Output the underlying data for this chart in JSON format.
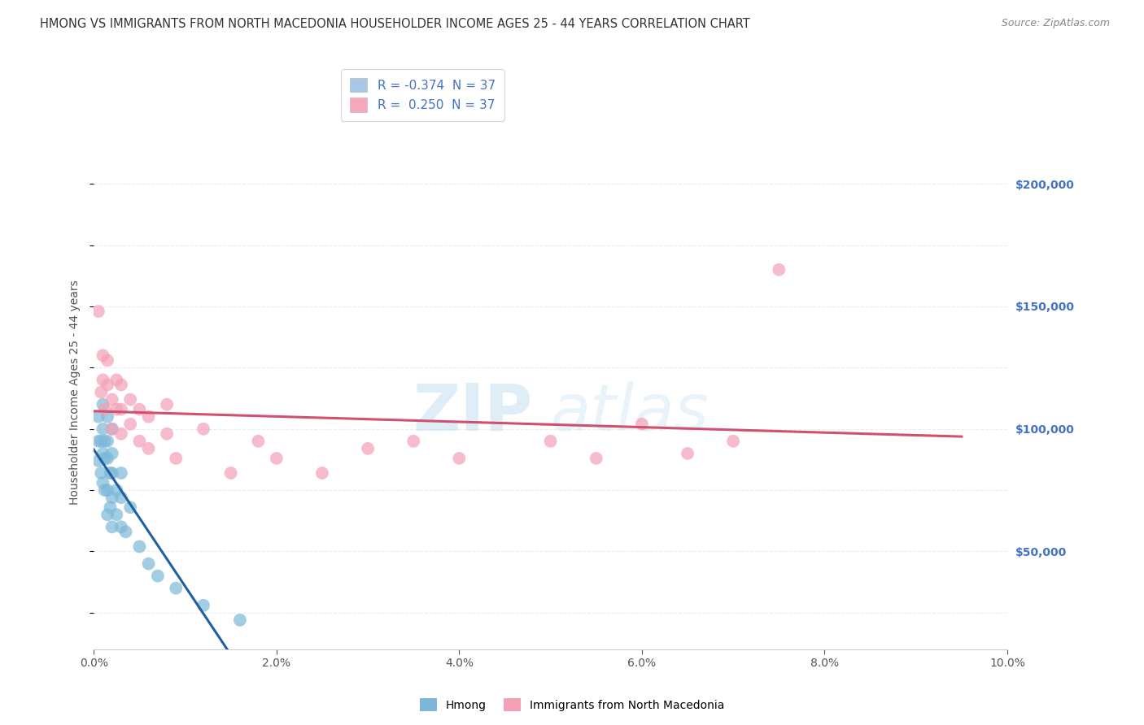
{
  "title": "HMONG VS IMMIGRANTS FROM NORTH MACEDONIA HOUSEHOLDER INCOME AGES 25 - 44 YEARS CORRELATION CHART",
  "source": "Source: ZipAtlas.com",
  "xlabel_ticks": [
    "0.0%",
    "2.0%",
    "4.0%",
    "6.0%",
    "8.0%",
    "10.0%"
  ],
  "xlabel_vals": [
    0.0,
    0.02,
    0.04,
    0.06,
    0.08,
    0.1
  ],
  "ylabel": "Householder Income Ages 25 - 44 years",
  "ylabel_ticks": [
    "$50,000",
    "$100,000",
    "$150,000",
    "$200,000"
  ],
  "ylabel_vals": [
    50000,
    100000,
    150000,
    200000
  ],
  "xlim": [
    0.0,
    0.1
  ],
  "ylim": [
    10000,
    220000
  ],
  "legend_entries": [
    {
      "label": "R = -0.374  N = 37",
      "color": "#a8c8e8"
    },
    {
      "label": "R =  0.250  N = 37",
      "color": "#f5a8ba"
    }
  ],
  "legend_labels": [
    "Hmong",
    "Immigrants from North Macedonia"
  ],
  "hmong_color": "#7db8d8",
  "nm_color": "#f5a0b5",
  "hmong_line_color": "#2060a0",
  "nm_line_color": "#d05070",
  "dashed_line_color": "#9ab8d8",
  "watermark_zip": "ZIP",
  "watermark_atlas": "atlas",
  "background_color": "#ffffff",
  "grid_color": "#e8e8e8",
  "hmong_x": [
    0.0005,
    0.0005,
    0.0005,
    0.0008,
    0.0008,
    0.001,
    0.001,
    0.001,
    0.001,
    0.0012,
    0.0012,
    0.0012,
    0.0015,
    0.0015,
    0.0015,
    0.0015,
    0.0015,
    0.0018,
    0.0018,
    0.002,
    0.002,
    0.002,
    0.002,
    0.002,
    0.0025,
    0.0025,
    0.003,
    0.003,
    0.003,
    0.0035,
    0.004,
    0.005,
    0.006,
    0.007,
    0.009,
    0.012,
    0.016
  ],
  "hmong_y": [
    87000,
    95000,
    105000,
    82000,
    95000,
    78000,
    90000,
    100000,
    110000,
    75000,
    88000,
    95000,
    65000,
    75000,
    88000,
    95000,
    105000,
    68000,
    82000,
    60000,
    72000,
    82000,
    90000,
    100000,
    65000,
    75000,
    60000,
    72000,
    82000,
    58000,
    68000,
    52000,
    45000,
    40000,
    35000,
    28000,
    22000
  ],
  "nm_x": [
    0.0005,
    0.0008,
    0.001,
    0.001,
    0.0012,
    0.0015,
    0.0015,
    0.002,
    0.002,
    0.0025,
    0.0025,
    0.003,
    0.003,
    0.003,
    0.004,
    0.004,
    0.005,
    0.005,
    0.006,
    0.006,
    0.008,
    0.008,
    0.009,
    0.012,
    0.015,
    0.018,
    0.02,
    0.025,
    0.03,
    0.035,
    0.04,
    0.05,
    0.055,
    0.06,
    0.065,
    0.07,
    0.075
  ],
  "nm_y": [
    148000,
    115000,
    120000,
    130000,
    108000,
    118000,
    128000,
    100000,
    112000,
    108000,
    120000,
    98000,
    108000,
    118000,
    102000,
    112000,
    95000,
    108000,
    92000,
    105000,
    98000,
    110000,
    88000,
    100000,
    82000,
    95000,
    88000,
    82000,
    92000,
    95000,
    88000,
    95000,
    88000,
    102000,
    90000,
    95000,
    165000
  ],
  "title_fontsize": 10.5,
  "source_fontsize": 9,
  "tick_fontsize": 10,
  "label_fontsize": 10
}
